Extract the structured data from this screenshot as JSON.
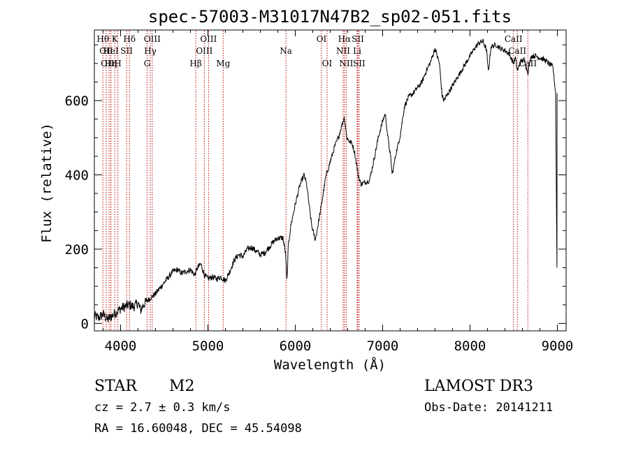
{
  "chart_data": {
    "type": "line",
    "title": "spec-57003-M31017N47B2_sp02-051.fits",
    "xlabel": "Wavelength (Å)",
    "ylabel": "Flux (relative)",
    "xlim": [
      3700,
      9100
    ],
    "ylim": [
      -20,
      790
    ],
    "x_ticks": [
      4000,
      5000,
      6000,
      7000,
      8000,
      9000
    ],
    "y_ticks": [
      0,
      200,
      400,
      600
    ],
    "spectrum_knots": [
      [
        3700,
        20
      ],
      [
        3750,
        15
      ],
      [
        3800,
        25
      ],
      [
        3850,
        10
      ],
      [
        3900,
        20
      ],
      [
        3950,
        30
      ],
      [
        4000,
        40
      ],
      [
        4050,
        45
      ],
      [
        4100,
        50
      ],
      [
        4150,
        45
      ],
      [
        4200,
        55
      ],
      [
        4230,
        35
      ],
      [
        4260,
        50
      ],
      [
        4300,
        60
      ],
      [
        4350,
        70
      ],
      [
        4400,
        80
      ],
      [
        4450,
        95
      ],
      [
        4500,
        110
      ],
      [
        4550,
        125
      ],
      [
        4600,
        140
      ],
      [
        4650,
        145
      ],
      [
        4700,
        135
      ],
      [
        4750,
        140
      ],
      [
        4800,
        145
      ],
      [
        4850,
        130
      ],
      [
        4880,
        150
      ],
      [
        4920,
        160
      ],
      [
        4960,
        130
      ],
      [
        5000,
        120
      ],
      [
        5050,
        125
      ],
      [
        5100,
        120
      ],
      [
        5150,
        125
      ],
      [
        5200,
        115
      ],
      [
        5250,
        140
      ],
      [
        5300,
        170
      ],
      [
        5350,
        185
      ],
      [
        5400,
        180
      ],
      [
        5450,
        200
      ],
      [
        5500,
        205
      ],
      [
        5550,
        195
      ],
      [
        5600,
        185
      ],
      [
        5650,
        190
      ],
      [
        5700,
        205
      ],
      [
        5750,
        220
      ],
      [
        5800,
        230
      ],
      [
        5860,
        230
      ],
      [
        5890,
        185
      ],
      [
        5905,
        110
      ],
      [
        5920,
        210
      ],
      [
        5950,
        265
      ],
      [
        6000,
        320
      ],
      [
        6050,
        370
      ],
      [
        6100,
        400
      ],
      [
        6130,
        375
      ],
      [
        6160,
        315
      ],
      [
        6190,
        260
      ],
      [
        6230,
        225
      ],
      [
        6260,
        265
      ],
      [
        6300,
        320
      ],
      [
        6350,
        395
      ],
      [
        6400,
        435
      ],
      [
        6450,
        475
      ],
      [
        6500,
        505
      ],
      [
        6540,
        540
      ],
      [
        6563,
        555
      ],
      [
        6590,
        500
      ],
      [
        6620,
        490
      ],
      [
        6650,
        485
      ],
      [
        6680,
        460
      ],
      [
        6700,
        430
      ],
      [
        6720,
        400
      ],
      [
        6750,
        375
      ],
      [
        6800,
        380
      ],
      [
        6850,
        385
      ],
      [
        6900,
        440
      ],
      [
        6950,
        500
      ],
      [
        7000,
        545
      ],
      [
        7030,
        565
      ],
      [
        7060,
        500
      ],
      [
        7090,
        450
      ],
      [
        7110,
        400
      ],
      [
        7150,
        455
      ],
      [
        7200,
        505
      ],
      [
        7250,
        585
      ],
      [
        7300,
        610
      ],
      [
        7350,
        620
      ],
      [
        7400,
        635
      ],
      [
        7450,
        650
      ],
      [
        7500,
        680
      ],
      [
        7550,
        705
      ],
      [
        7600,
        740
      ],
      [
        7650,
        700
      ],
      [
        7680,
        615
      ],
      [
        7700,
        600
      ],
      [
        7750,
        620
      ],
      [
        7800,
        640
      ],
      [
        7850,
        660
      ],
      [
        7900,
        680
      ],
      [
        7950,
        700
      ],
      [
        8000,
        720
      ],
      [
        8050,
        740
      ],
      [
        8100,
        755
      ],
      [
        8150,
        760
      ],
      [
        8190,
        735
      ],
      [
        8210,
        675
      ],
      [
        8240,
        745
      ],
      [
        8300,
        750
      ],
      [
        8350,
        740
      ],
      [
        8400,
        735
      ],
      [
        8450,
        725
      ],
      [
        8498,
        700
      ],
      [
        8520,
        715
      ],
      [
        8542,
        680
      ],
      [
        8580,
        705
      ],
      [
        8620,
        710
      ],
      [
        8662,
        675
      ],
      [
        8700,
        720
      ],
      [
        8750,
        720
      ],
      [
        8800,
        715
      ],
      [
        8850,
        710
      ],
      [
        8900,
        700
      ],
      [
        8950,
        690
      ],
      [
        8980,
        620
      ],
      [
        8995,
        150
      ]
    ],
    "emission_lines": [
      {
        "wave": 3798,
        "label": "Hθ",
        "row": 1
      },
      {
        "wave": 3835,
        "label": "OII",
        "row": 2
      },
      {
        "wave": 3869,
        "label": "OIII",
        "row": 3
      },
      {
        "wave": 3889,
        "label": "Hη",
        "row": 3
      },
      {
        "wave": 3889,
        "label": "HeI",
        "row": 2
      },
      {
        "wave": 3934,
        "label": "K",
        "row": 1
      },
      {
        "wave": 3969,
        "label": "H",
        "row": 3
      },
      {
        "wave": 4069,
        "label": "SII",
        "row": 2
      },
      {
        "wave": 4102,
        "label": "Hδ",
        "row": 1
      },
      {
        "wave": 4304,
        "label": "G",
        "row": 3
      },
      {
        "wave": 4340,
        "label": "Hγ",
        "row": 2
      },
      {
        "wave": 4363,
        "label": "OIII",
        "row": 1
      },
      {
        "wave": 4861,
        "label": "Hβ",
        "row": 3
      },
      {
        "wave": 4959,
        "label": "OIII",
        "row": 2
      },
      {
        "wave": 5007,
        "label": "OIII",
        "row": 1
      },
      {
        "wave": 5175,
        "label": "Mg",
        "row": 3
      },
      {
        "wave": 5893,
        "label": "Na",
        "row": 2
      },
      {
        "wave": 6300,
        "label": "OI",
        "row": 1
      },
      {
        "wave": 6364,
        "label": "OI",
        "row": 3
      },
      {
        "wave": 6548,
        "label": "NII",
        "row": 2
      },
      {
        "wave": 6563,
        "label": "Hα",
        "row": 1
      },
      {
        "wave": 6583,
        "label": "NII",
        "row": 3
      },
      {
        "wave": 6708,
        "label": "Li",
        "row": 2
      },
      {
        "wave": 6716,
        "label": "SII",
        "row": 1
      },
      {
        "wave": 6731,
        "label": "SII",
        "row": 3
      },
      {
        "wave": 8498,
        "label": "CaII",
        "row": 1
      },
      {
        "wave": 8542,
        "label": "CaII",
        "row": 2
      },
      {
        "wave": 8662,
        "label": "CaII",
        "row": 3
      }
    ]
  },
  "info": {
    "class": "STAR",
    "subclass": "M2",
    "survey": "LAMOST DR3",
    "cz": "cz = 2.7 ± 0.3 km/s",
    "obs_date": "Obs-Date: 20141211",
    "coords": "RA =  16.60048, DEC =  45.54098"
  }
}
